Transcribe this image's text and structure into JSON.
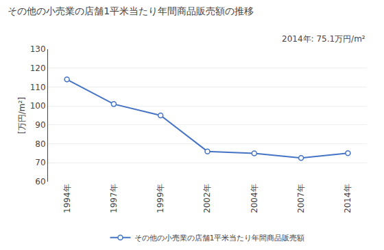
{
  "chart_data": {
    "type": "line",
    "title": "その他の小売業の店舗1平米当たり年間商品販売額の推移",
    "ylabel": "[万円/m²]",
    "annotation": "2014年: 75.1万円/m²",
    "categories": [
      "1994年",
      "1997年",
      "1999年",
      "2002年",
      "2004年",
      "2007年",
      "2014年"
    ],
    "series": [
      {
        "name": "その他の小売業の店舗1平米当たり年間商品販売額",
        "color": "#4472C4",
        "marker": "circle",
        "values": [
          114.0,
          101.0,
          95.0,
          76.0,
          75.0,
          72.5,
          75.1
        ]
      }
    ],
    "ylim": [
      60,
      130
    ],
    "yticks": [
      60,
      70,
      80,
      90,
      100,
      110,
      120,
      130
    ],
    "grid": true,
    "legend": "bottom"
  }
}
